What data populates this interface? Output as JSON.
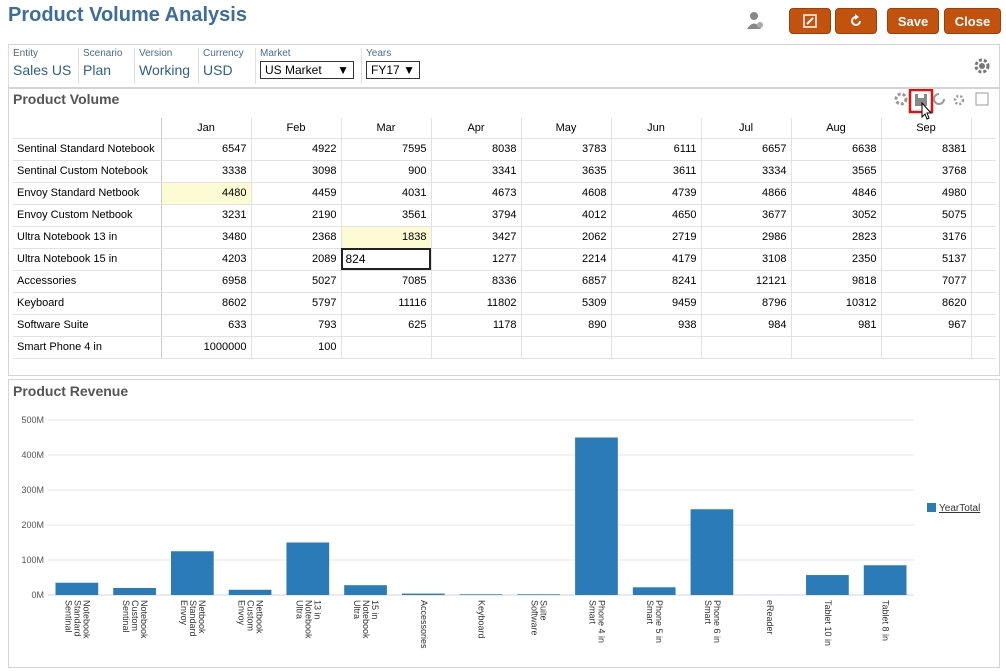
{
  "header": {
    "title": "Product Volume Analysis",
    "buttons": [
      "Save",
      "Close"
    ]
  },
  "pov": [
    {
      "label": "Entity",
      "value": "Sales US"
    },
    {
      "label": "Scenario",
      "value": "Plan"
    },
    {
      "label": "Version",
      "value": "Working"
    },
    {
      "label": "Currency",
      "value": "USD"
    },
    {
      "label": "Market",
      "value": "US Market",
      "dropdown": true
    },
    {
      "label": "Years",
      "value": "FY17",
      "dropdown": true
    }
  ],
  "grid": {
    "title": "Product Volume",
    "columns": [
      "Jan",
      "Feb",
      "Mar",
      "Apr",
      "May",
      "Jun",
      "Jul",
      "Aug",
      "Sep"
    ],
    "rows": [
      {
        "name": "Sentinal Standard Notebook",
        "values": [
          6547,
          4922,
          7595,
          8038,
          3783,
          6111,
          6657,
          6638,
          8381
        ]
      },
      {
        "name": "Sentinal Custom Notebook",
        "values": [
          3338,
          3098,
          900,
          3341,
          3635,
          3611,
          3334,
          3565,
          3768
        ]
      },
      {
        "name": "Envoy Standard Netbook",
        "values": [
          4480,
          4459,
          4031,
          4673,
          4608,
          4739,
          4866,
          4846,
          4980
        ]
      },
      {
        "name": "Envoy Custom Netbook",
        "values": [
          3231,
          2190,
          3561,
          3794,
          4012,
          4650,
          3677,
          3052,
          5075
        ]
      },
      {
        "name": "Ultra Notebook 13 in",
        "values": [
          3480,
          2368,
          1838,
          3427,
          2062,
          2719,
          2986,
          2823,
          3176
        ]
      },
      {
        "name": "Ultra Notebook 15 in",
        "values": [
          4203,
          2089,
          824,
          1277,
          2214,
          4179,
          3108,
          2350,
          5137
        ]
      },
      {
        "name": "Accessories",
        "values": [
          6958,
          5027,
          7085,
          8336,
          6857,
          8241,
          12121,
          9818,
          7077
        ]
      },
      {
        "name": "Keyboard",
        "values": [
          8602,
          5797,
          11116,
          11802,
          5309,
          9459,
          8796,
          10312,
          8620
        ]
      },
      {
        "name": "Software Suite",
        "values": [
          633,
          793,
          625,
          1178,
          890,
          938,
          984,
          981,
          967
        ]
      },
      {
        "name": "Smart Phone 4 in",
        "values": [
          1000000,
          100,
          null,
          null,
          null,
          null,
          null,
          null,
          null
        ]
      }
    ],
    "highlighted_cells": [
      [
        2,
        0
      ],
      [
        4,
        2
      ]
    ],
    "editing_cell": [
      5,
      2
    ]
  },
  "chart_data": {
    "type": "bar",
    "title": "Product Revenue",
    "categories": [
      "Sentinal Standard Notebook",
      "Sentinal Custom Notebook",
      "Envoy Standard Netbook",
      "Envoy Custom Netbook",
      "Ultra Notebook 13 in",
      "Ultra Notebook 15 in",
      "Accessories",
      "Keyboard",
      "Software Suite",
      "Smart Phone 4 in",
      "Smart Phone 5 in",
      "Smart Phone 6 in",
      "eReader",
      "Tablet 10 in",
      "Tablet 8 in"
    ],
    "series": [
      {
        "name": "YearTotal",
        "color": "#2b7bb9",
        "values": [
          35000000,
          20000000,
          125000000,
          15000000,
          150000000,
          28000000,
          4000000,
          2000000,
          2000000,
          450000000,
          22000000,
          245000000,
          0,
          57000000,
          85000000
        ]
      }
    ],
    "ylim": [
      0,
      500000000
    ],
    "yticks": [
      {
        "value": 0,
        "label": "0M"
      },
      {
        "value": 100000000,
        "label": "100M"
      },
      {
        "value": 200000000,
        "label": "200M"
      },
      {
        "value": 300000000,
        "label": "300M"
      },
      {
        "value": 400000000,
        "label": "400M"
      },
      {
        "value": 500000000,
        "label": "500M"
      }
    ],
    "grid": true,
    "legend": "right"
  }
}
